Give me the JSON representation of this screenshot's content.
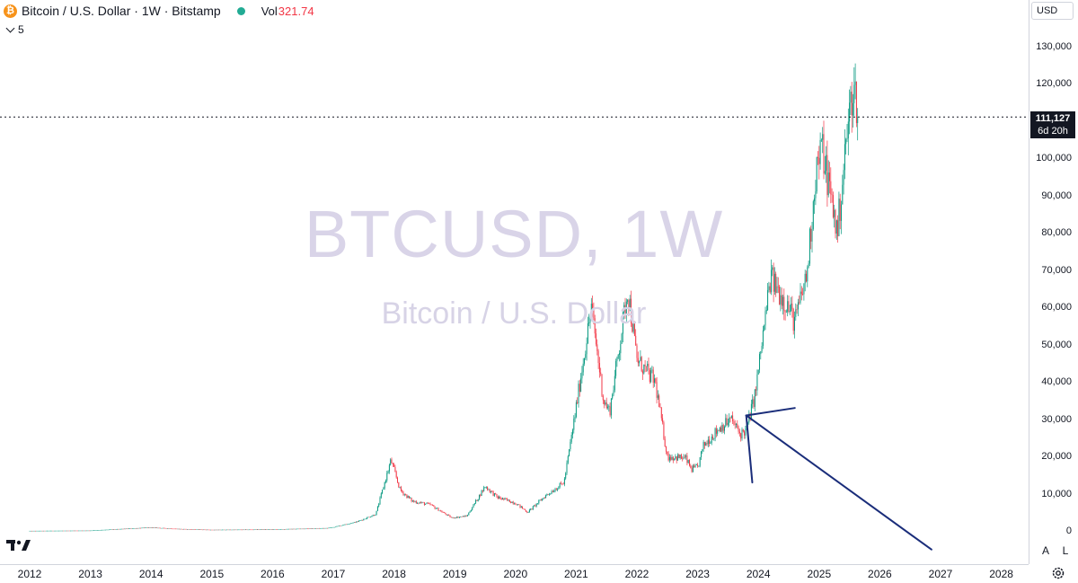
{
  "header": {
    "symbol_title": "Bitcoin / U.S. Dollar · 1W · Bitstamp",
    "vol_label": "Vol",
    "vol_value": "321.74",
    "indicator_count": "5",
    "coin_icon": "bitcoin-icon"
  },
  "watermark": {
    "ticker": "BTCUSD, 1W",
    "description": "Bitcoin / U.S. Dollar"
  },
  "price_axis": {
    "currency": "USD",
    "labels": [
      "130,000",
      "120,000",
      "100,000",
      "90,000",
      "80,000",
      "70,000",
      "60,000",
      "50,000",
      "40,000",
      "30,000",
      "20,000",
      "10,000",
      "0"
    ],
    "last_price": "111,127",
    "countdown": "6d 20h",
    "auto_button": "A",
    "log_button": "L"
  },
  "time_axis": {
    "labels": [
      "2012",
      "2013",
      "2014",
      "2015",
      "2016",
      "2017",
      "2018",
      "2019",
      "2020",
      "2021",
      "2022",
      "2023",
      "2024",
      "2025",
      "2026",
      "2027",
      "2028"
    ]
  },
  "colors": {
    "up": "#089981",
    "down": "#f23645",
    "annotation": "#1a2d7a",
    "price_line": "#131722",
    "vol_value": "#f23645"
  },
  "chart_data": {
    "type": "candlestick",
    "title": "Bitcoin / U.S. Dollar · 1W · Bitstamp",
    "ylim": [
      0,
      135000
    ],
    "xlim": [
      2011.9,
      2028.35
    ],
    "last_price": 111127,
    "price_path": [
      [
        2012.0,
        20
      ],
      [
        2013.0,
        100
      ],
      [
        2013.85,
        800
      ],
      [
        2014.0,
        900
      ],
      [
        2014.5,
        500
      ],
      [
        2015.0,
        300
      ],
      [
        2016.0,
        400
      ],
      [
        2016.9,
        750
      ],
      [
        2017.0,
        1000
      ],
      [
        2017.4,
        2500
      ],
      [
        2017.7,
        4500
      ],
      [
        2017.95,
        19000
      ],
      [
        2018.1,
        11000
      ],
      [
        2018.3,
        8000
      ],
      [
        2018.6,
        7000
      ],
      [
        2018.95,
        3500
      ],
      [
        2019.2,
        4000
      ],
      [
        2019.5,
        12000
      ],
      [
        2019.7,
        9000
      ],
      [
        2020.0,
        7500
      ],
      [
        2020.2,
        5000
      ],
      [
        2020.5,
        9500
      ],
      [
        2020.8,
        13000
      ],
      [
        2020.95,
        28000
      ],
      [
        2021.25,
        60000
      ],
      [
        2021.45,
        35000
      ],
      [
        2021.55,
        32000
      ],
      [
        2021.85,
        65000
      ],
      [
        2022.0,
        46000
      ],
      [
        2022.3,
        40000
      ],
      [
        2022.5,
        20000
      ],
      [
        2022.8,
        19500
      ],
      [
        2022.9,
        16500
      ],
      [
        2023.0,
        17000
      ],
      [
        2023.1,
        23000
      ],
      [
        2023.35,
        27500
      ],
      [
        2023.55,
        30000
      ],
      [
        2023.7,
        26000
      ],
      [
        2023.8,
        27000
      ],
      [
        2023.95,
        37000
      ],
      [
        2024.2,
        68000
      ],
      [
        2024.5,
        60000
      ],
      [
        2024.6,
        56000
      ],
      [
        2024.8,
        69000
      ],
      [
        2024.95,
        97000
      ],
      [
        2025.05,
        103000
      ],
      [
        2025.3,
        80000
      ],
      [
        2025.45,
        105000
      ],
      [
        2025.55,
        119000
      ],
      [
        2025.6,
        117000
      ],
      [
        2025.65,
        111127
      ]
    ],
    "annotation": {
      "type": "arrow",
      "apex": [
        2023.8,
        31000
      ],
      "ends": [
        [
          2024.6,
          33000
        ],
        [
          2023.9,
          13000
        ],
        [
          2026.85,
          -5000
        ]
      ]
    }
  }
}
